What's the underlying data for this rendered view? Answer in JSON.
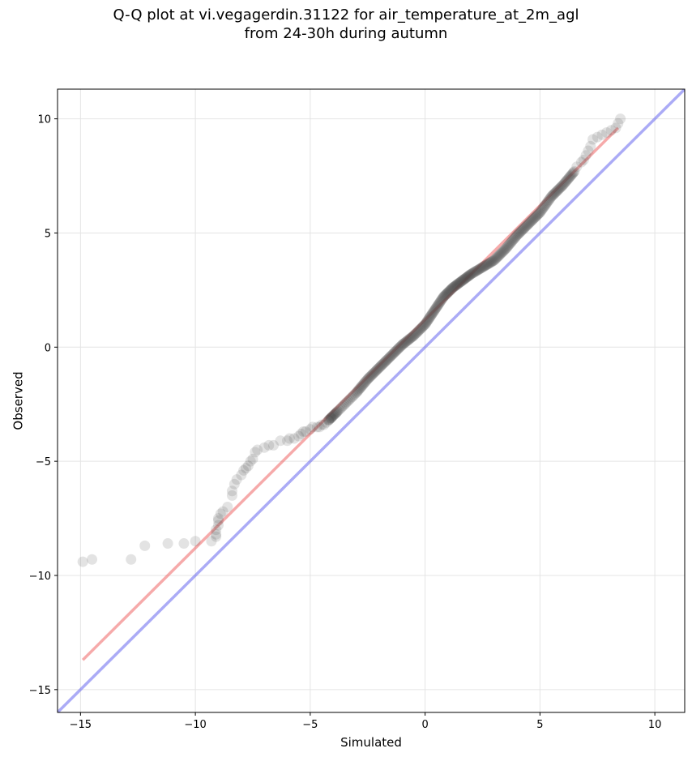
{
  "title": {
    "line1": "Q-Q plot at vi.vegagerdin.31122 for air_temperature_at_2m_agl",
    "line2": "from 24-30h during autumn"
  },
  "chart_data": {
    "type": "scatter",
    "xlabel": "Simulated",
    "ylabel": "Observed",
    "xlim": [
      -16.0,
      11.3
    ],
    "ylim": [
      -16.0,
      11.3
    ],
    "xticks": [
      -15,
      -10,
      -5,
      0,
      5,
      10
    ],
    "yticks": [
      -15,
      -10,
      -5,
      0,
      5,
      10
    ],
    "xtick_labels": [
      "−15",
      "−10",
      "−5",
      "0",
      "5",
      "10"
    ],
    "ytick_labels": [
      "−15",
      "−10",
      "−5",
      "0",
      "5",
      "10"
    ],
    "grid": true,
    "colors": {
      "points": "#404040",
      "fit_line": "#ee5555",
      "identity_line": "#6666ee",
      "grid": "#e4e4e4"
    },
    "fit_line": {
      "x": [
        -14.9,
        8.4
      ],
      "y": [
        -13.7,
        9.6
      ]
    },
    "identity_line": {
      "x": [
        -16.0,
        11.3
      ],
      "y": [
        -16.0,
        11.3
      ]
    },
    "points_sparse": [
      [
        -14.9,
        -9.4
      ],
      [
        -14.5,
        -9.3
      ],
      [
        -12.8,
        -9.3
      ],
      [
        -12.2,
        -8.7
      ],
      [
        -11.2,
        -8.6
      ],
      [
        -10.5,
        -8.6
      ],
      [
        -10.0,
        -8.5
      ],
      [
        -9.3,
        -8.5
      ],
      [
        -9.1,
        -8.3
      ],
      [
        -9.1,
        -8.2
      ],
      [
        -9.1,
        -8.0
      ],
      [
        -9.0,
        -7.8
      ],
      [
        -9.0,
        -7.6
      ],
      [
        -9.0,
        -7.5
      ],
      [
        -8.9,
        -7.3
      ],
      [
        -8.8,
        -7.2
      ],
      [
        -8.6,
        -7.0
      ],
      [
        -8.4,
        -6.5
      ],
      [
        -8.4,
        -6.3
      ],
      [
        -8.3,
        -6.0
      ],
      [
        -8.2,
        -5.8
      ],
      [
        -8.0,
        -5.6
      ],
      [
        -7.9,
        -5.4
      ],
      [
        -7.8,
        -5.3
      ],
      [
        -7.7,
        -5.2
      ],
      [
        -7.6,
        -5.0
      ],
      [
        -7.5,
        -4.9
      ],
      [
        -7.4,
        -4.6
      ],
      [
        -7.3,
        -4.5
      ],
      [
        -7.0,
        -4.4
      ],
      [
        -6.8,
        -4.3
      ],
      [
        -6.6,
        -4.3
      ],
      [
        -6.3,
        -4.1
      ],
      [
        -6.0,
        -4.1
      ],
      [
        -5.9,
        -4.0
      ],
      [
        -5.7,
        -4.0
      ],
      [
        -5.5,
        -3.9
      ],
      [
        -5.4,
        -3.8
      ],
      [
        -5.3,
        -3.7
      ],
      [
        -5.2,
        -3.7
      ],
      [
        -5.0,
        -3.6
      ],
      [
        -4.9,
        -3.5
      ],
      [
        -4.7,
        -3.5
      ],
      [
        -4.6,
        -3.5
      ],
      [
        -4.5,
        -3.4
      ],
      [
        -4.4,
        -3.4
      ],
      [
        -4.3,
        -3.3
      ],
      [
        -4.2,
        -3.2
      ],
      [
        -4.1,
        -3.1
      ],
      [
        6.6,
        7.9
      ],
      [
        6.8,
        8.1
      ],
      [
        6.9,
        8.2
      ],
      [
        7.0,
        8.4
      ],
      [
        7.1,
        8.6
      ],
      [
        7.2,
        8.8
      ],
      [
        7.3,
        9.1
      ],
      [
        7.5,
        9.2
      ],
      [
        7.7,
        9.3
      ],
      [
        7.9,
        9.4
      ],
      [
        8.1,
        9.5
      ],
      [
        8.3,
        9.6
      ],
      [
        8.4,
        9.8
      ],
      [
        8.5,
        10.0
      ]
    ],
    "points_dense_path": [
      [
        -4.2,
        -3.2
      ],
      [
        -3.8,
        -2.8
      ],
      [
        -3.0,
        -2.0
      ],
      [
        -2.5,
        -1.4
      ],
      [
        -2.0,
        -0.9
      ],
      [
        -1.5,
        -0.4
      ],
      [
        -1.0,
        0.1
      ],
      [
        -0.5,
        0.5
      ],
      [
        0.0,
        1.0
      ],
      [
        0.4,
        1.6
      ],
      [
        0.8,
        2.2
      ],
      [
        1.2,
        2.6
      ],
      [
        1.6,
        2.9
      ],
      [
        2.0,
        3.2
      ],
      [
        2.5,
        3.5
      ],
      [
        3.0,
        3.8
      ],
      [
        3.5,
        4.3
      ],
      [
        4.0,
        4.9
      ],
      [
        4.5,
        5.4
      ],
      [
        5.0,
        5.9
      ],
      [
        5.5,
        6.6
      ],
      [
        6.0,
        7.1
      ],
      [
        6.5,
        7.7
      ]
    ]
  }
}
